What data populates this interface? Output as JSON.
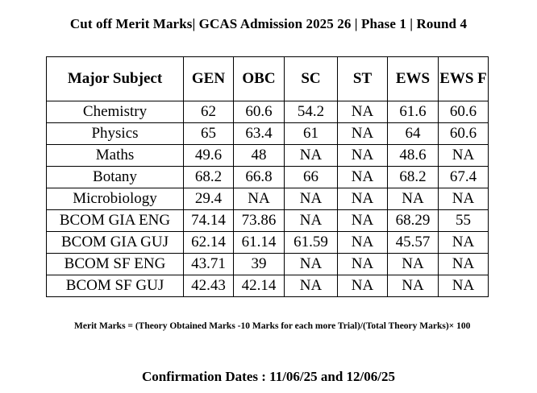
{
  "title": "Cut off Merit Marks| GCAS Admission 2025 26 | Phase 1 | Round 4",
  "table": {
    "headers": [
      "Major Subject",
      "GEN",
      "OBC",
      "SC",
      "ST",
      "EWS",
      "EWS F"
    ],
    "rows": [
      [
        "Chemistry",
        "62",
        "60.6",
        "54.2",
        "NA",
        "61.6",
        "60.6"
      ],
      [
        "Physics",
        "65",
        "63.4",
        "61",
        "NA",
        "64",
        "60.6"
      ],
      [
        "Maths",
        "49.6",
        "48",
        "NA",
        "NA",
        "48.6",
        "NA"
      ],
      [
        "Botany",
        "68.2",
        "66.8",
        "66",
        "NA",
        "68.2",
        "67.4"
      ],
      [
        "Microbiology",
        "29.4",
        "NA",
        "NA",
        "NA",
        "NA",
        "NA"
      ],
      [
        "BCOM GIA ENG",
        "74.14",
        "73.86",
        "NA",
        "NA",
        "68.29",
        "55"
      ],
      [
        "BCOM GIA GUJ",
        "62.14",
        "61.14",
        "61.59",
        "NA",
        "45.57",
        "NA"
      ],
      [
        "BCOM SF ENG",
        "43.71",
        "39",
        "NA",
        "NA",
        "NA",
        "NA"
      ],
      [
        "BCOM SF GUJ",
        "42.43",
        "42.14",
        "NA",
        "NA",
        "NA",
        "NA"
      ]
    ]
  },
  "formula": "Merit Marks = (Theory Obtained Marks -10 Marks for each more Trial)/(Total Theory Marks)× 100",
  "confirmation": {
    "label": "Confirmation Dates :",
    "dates": "11/06/25 and 12/06/25"
  }
}
